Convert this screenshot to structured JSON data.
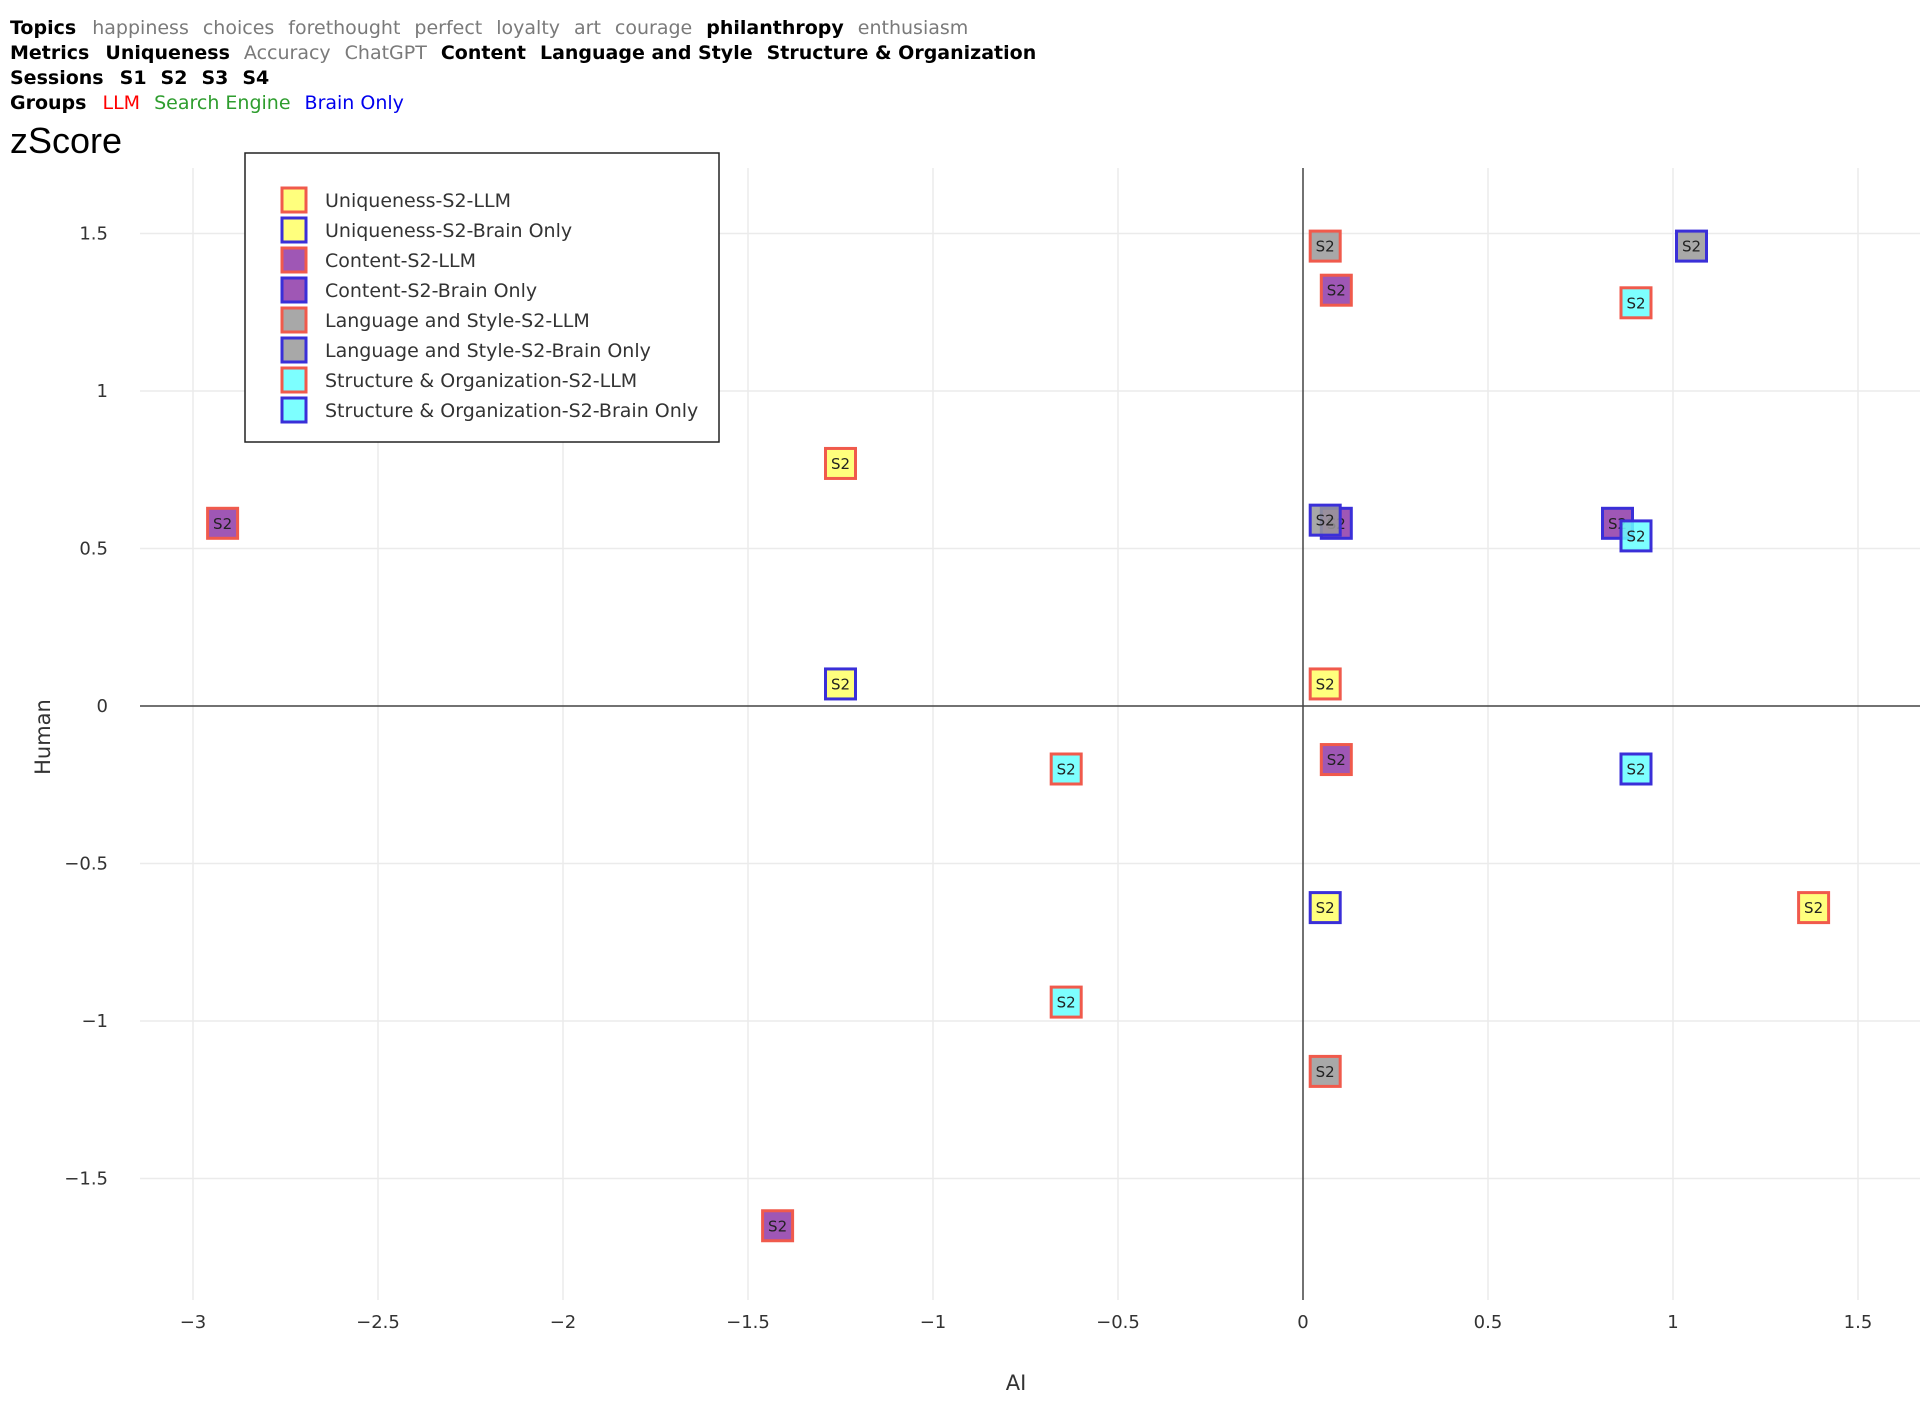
{
  "filters": {
    "topics": {
      "label": "Topics",
      "options": [
        {
          "text": "happiness",
          "active": false
        },
        {
          "text": "choices",
          "active": false
        },
        {
          "text": "forethought",
          "active": false
        },
        {
          "text": "perfect",
          "active": false
        },
        {
          "text": "loyalty",
          "active": false
        },
        {
          "text": "art",
          "active": false
        },
        {
          "text": "courage",
          "active": false
        },
        {
          "text": "philanthropy",
          "active": true
        },
        {
          "text": "enthusiasm",
          "active": false
        }
      ]
    },
    "metrics": {
      "label": "Metrics",
      "options": [
        {
          "text": "Uniqueness",
          "active": true
        },
        {
          "text": "Accuracy",
          "active": false
        },
        {
          "text": "ChatGPT",
          "active": false
        },
        {
          "text": "Content",
          "active": true
        },
        {
          "text": "Language and Style",
          "active": true
        },
        {
          "text": "Structure & Organization",
          "active": true
        }
      ]
    },
    "sessions": {
      "label": "Sessions",
      "options": [
        {
          "text": "S1",
          "active": true
        },
        {
          "text": "S2",
          "active": true
        },
        {
          "text": "S3",
          "active": true
        },
        {
          "text": "S4",
          "active": true
        }
      ]
    },
    "groups": {
      "label": "Groups",
      "options": [
        {
          "text": "LLM",
          "active": true,
          "color": "#ff0000"
        },
        {
          "text": "Search Engine",
          "active": true,
          "color": "#2e9d2e"
        },
        {
          "text": "Brain Only",
          "active": true,
          "color": "#0000ee"
        }
      ]
    }
  },
  "title": "zScore",
  "colors": {
    "llm_edge": "#f05a4c",
    "brain_edge": "#3a2fd8",
    "uniqueness_fill": "#ffff66",
    "content_fill": "#8e3aa8",
    "language_fill": "#999999",
    "structure_fill": "#66ffff",
    "grid": "#ebebeb",
    "zero_line": "#444444"
  },
  "chart_data": {
    "type": "scatter",
    "title": "zScore",
    "xlabel": "AI",
    "ylabel": "Human",
    "xlim": [
      -3.3,
      1.7
    ],
    "ylim": [
      -1.9,
      1.7
    ],
    "xticks": [
      {
        "value": -3,
        "label": "−3"
      },
      {
        "value": -2.5,
        "label": "−2.5"
      },
      {
        "value": -2,
        "label": "−2"
      },
      {
        "value": -1.5,
        "label": "−1.5"
      },
      {
        "value": -1,
        "label": "−1"
      },
      {
        "value": -0.5,
        "label": "−0.5"
      },
      {
        "value": 0,
        "label": "0"
      },
      {
        "value": 0.5,
        "label": "0.5"
      },
      {
        "value": 1,
        "label": "1"
      },
      {
        "value": 1.5,
        "label": "1.5"
      }
    ],
    "yticks": [
      {
        "value": 1.5,
        "label": "1.5"
      },
      {
        "value": 1,
        "label": "1"
      },
      {
        "value": 0.5,
        "label": "0.5"
      },
      {
        "value": 0,
        "label": "0"
      },
      {
        "value": -0.5,
        "label": "−0.5"
      },
      {
        "value": -1,
        "label": "−1"
      },
      {
        "value": -1.5,
        "label": "−1.5"
      }
    ],
    "grid": true,
    "legend_position": "top-left",
    "marker_label": "S2",
    "series": [
      {
        "name": "Uniqueness-S2-LLM",
        "fill": "#ffff66",
        "edge": "#f05a4c",
        "points": [
          {
            "x": -1.25,
            "y": 0.77
          },
          {
            "x": 0.06,
            "y": 0.07
          },
          {
            "x": 1.38,
            "y": -0.64
          }
        ]
      },
      {
        "name": "Uniqueness-S2-Brain Only",
        "fill": "#ffff66",
        "edge": "#3a2fd8",
        "points": [
          {
            "x": -1.25,
            "y": 0.07
          },
          {
            "x": 0.06,
            "y": -0.64
          }
        ]
      },
      {
        "name": "Content-S2-LLM",
        "fill": "#8e3aa8",
        "edge": "#f05a4c",
        "points": [
          {
            "x": -2.92,
            "y": 0.58
          },
          {
            "x": -1.42,
            "y": -1.65
          },
          {
            "x": 0.09,
            "y": 1.32
          },
          {
            "x": 0.09,
            "y": -0.17
          }
        ]
      },
      {
        "name": "Content-S2-Brain Only",
        "fill": "#8e3aa8",
        "edge": "#3a2fd8",
        "points": [
          {
            "x": 0.09,
            "y": 0.58
          },
          {
            "x": 0.85,
            "y": 0.58
          }
        ]
      },
      {
        "name": "Language and Style-S2-LLM",
        "fill": "#999999",
        "edge": "#f05a4c",
        "points": [
          {
            "x": 0.06,
            "y": 1.46
          },
          {
            "x": 0.06,
            "y": -1.16
          }
        ]
      },
      {
        "name": "Language and Style-S2-Brain Only",
        "fill": "#999999",
        "edge": "#3a2fd8",
        "points": [
          {
            "x": 1.05,
            "y": 1.46
          },
          {
            "x": 0.06,
            "y": 0.59
          }
        ]
      },
      {
        "name": "Structure & Organization-S2-LLM",
        "fill": "#66ffff",
        "edge": "#f05a4c",
        "points": [
          {
            "x": 0.9,
            "y": 1.28
          },
          {
            "x": -0.64,
            "y": -0.2
          },
          {
            "x": -0.64,
            "y": -0.94
          }
        ]
      },
      {
        "name": "Structure & Organization-S2-Brain Only",
        "fill": "#66ffff",
        "edge": "#3a2fd8",
        "points": [
          {
            "x": 0.9,
            "y": 0.54
          },
          {
            "x": 0.9,
            "y": -0.2
          }
        ]
      }
    ]
  }
}
